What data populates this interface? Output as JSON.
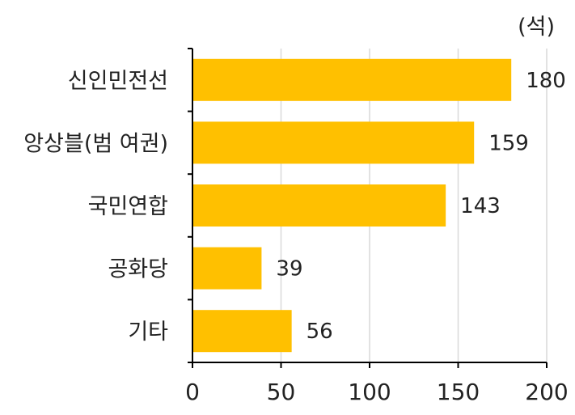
{
  "chart_data": {
    "type": "bar",
    "orientation": "horizontal",
    "categories": [
      "신인민전선",
      "앙상블(범 여권)",
      "국민연합",
      "공화당",
      "기타"
    ],
    "values": [
      180,
      159,
      143,
      39,
      56
    ],
    "unit": "(석)",
    "xlim": [
      0,
      200
    ],
    "xticks": [
      0,
      50,
      100,
      150,
      200
    ],
    "grid": "vertical",
    "bar_color": "#FFC000",
    "title": "",
    "xlabel": "",
    "ylabel": ""
  }
}
